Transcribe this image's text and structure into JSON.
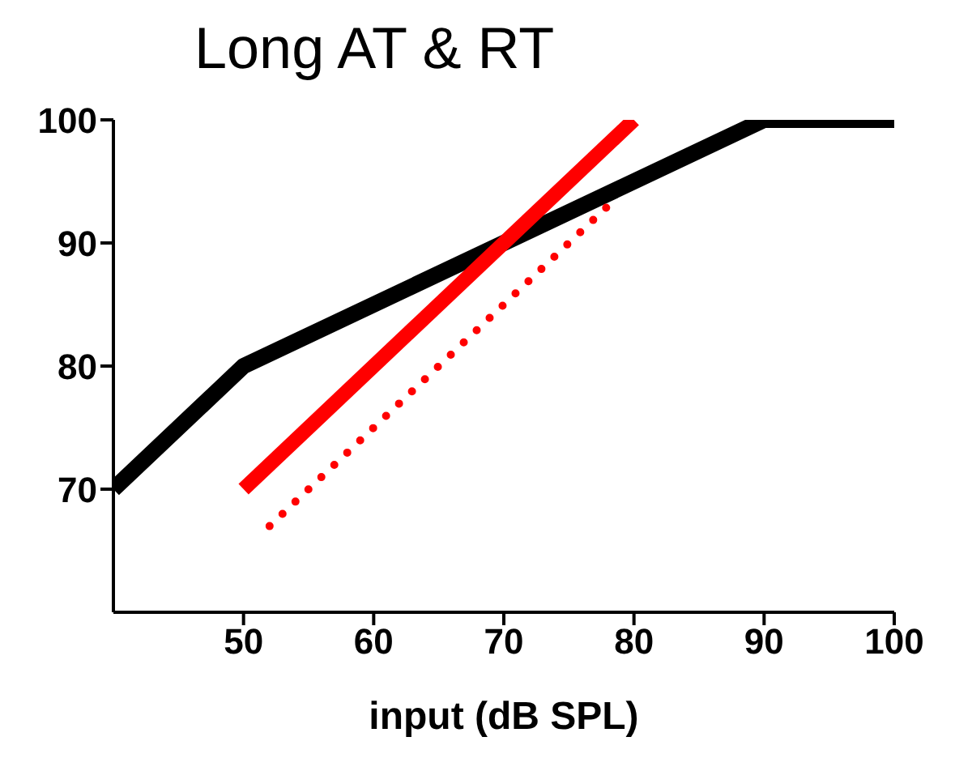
{
  "chart_data": {
    "type": "line",
    "title": "Long AT & RT",
    "xlabel": "input (dB SPL)",
    "xlim": [
      40,
      100
    ],
    "xticks": [
      50,
      60,
      70,
      80,
      90,
      100
    ],
    "ylim": [
      60,
      100
    ],
    "yticks": [
      70,
      80,
      90,
      100
    ],
    "grid": false,
    "marker": "none",
    "series": [
      {
        "color": "#000000",
        "line_style": "solid",
        "x": [
          40,
          50,
          90,
          100
        ],
        "values": [
          70,
          80,
          100,
          100
        ]
      },
      {
        "color": "#ff0000",
        "line_style": "solid",
        "x": [
          50,
          80
        ],
        "values": [
          70,
          100
        ]
      },
      {
        "color": "#ff0000",
        "line_style": "dotted",
        "x": [
          52,
          78
        ],
        "values": [
          67,
          93
        ]
      }
    ]
  }
}
